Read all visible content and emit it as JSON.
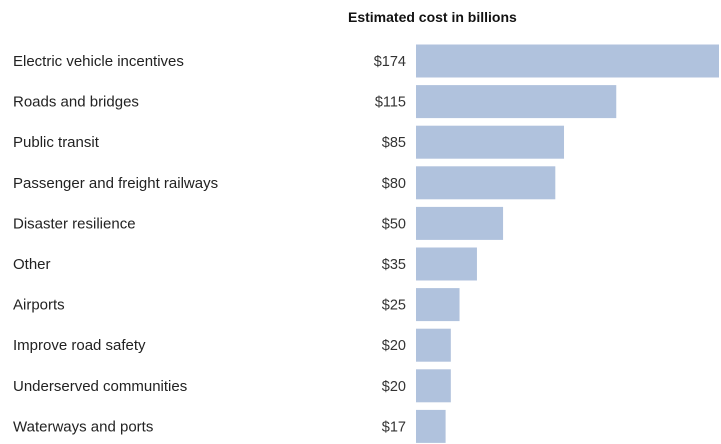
{
  "chart_data": {
    "type": "bar",
    "orientation": "horizontal",
    "title": "Estimated cost in billions",
    "categories": [
      "Electric vehicle incentives",
      "Roads and bridges",
      "Public transit",
      "Passenger and freight railways",
      "Disaster resilience",
      "Other",
      "Airports",
      "Improve road safety",
      "Underserved communities",
      "Waterways and ports"
    ],
    "values": [
      174,
      115,
      85,
      80,
      50,
      35,
      25,
      20,
      20,
      17
    ],
    "value_labels": [
      "$174",
      "$115",
      "$85",
      "$80",
      "$50",
      "$35",
      "$25",
      "$20",
      "$20",
      "$17"
    ],
    "unit": "billions of dollars",
    "bar_color": "#b0c2dd",
    "grid": false,
    "legend": "none"
  }
}
